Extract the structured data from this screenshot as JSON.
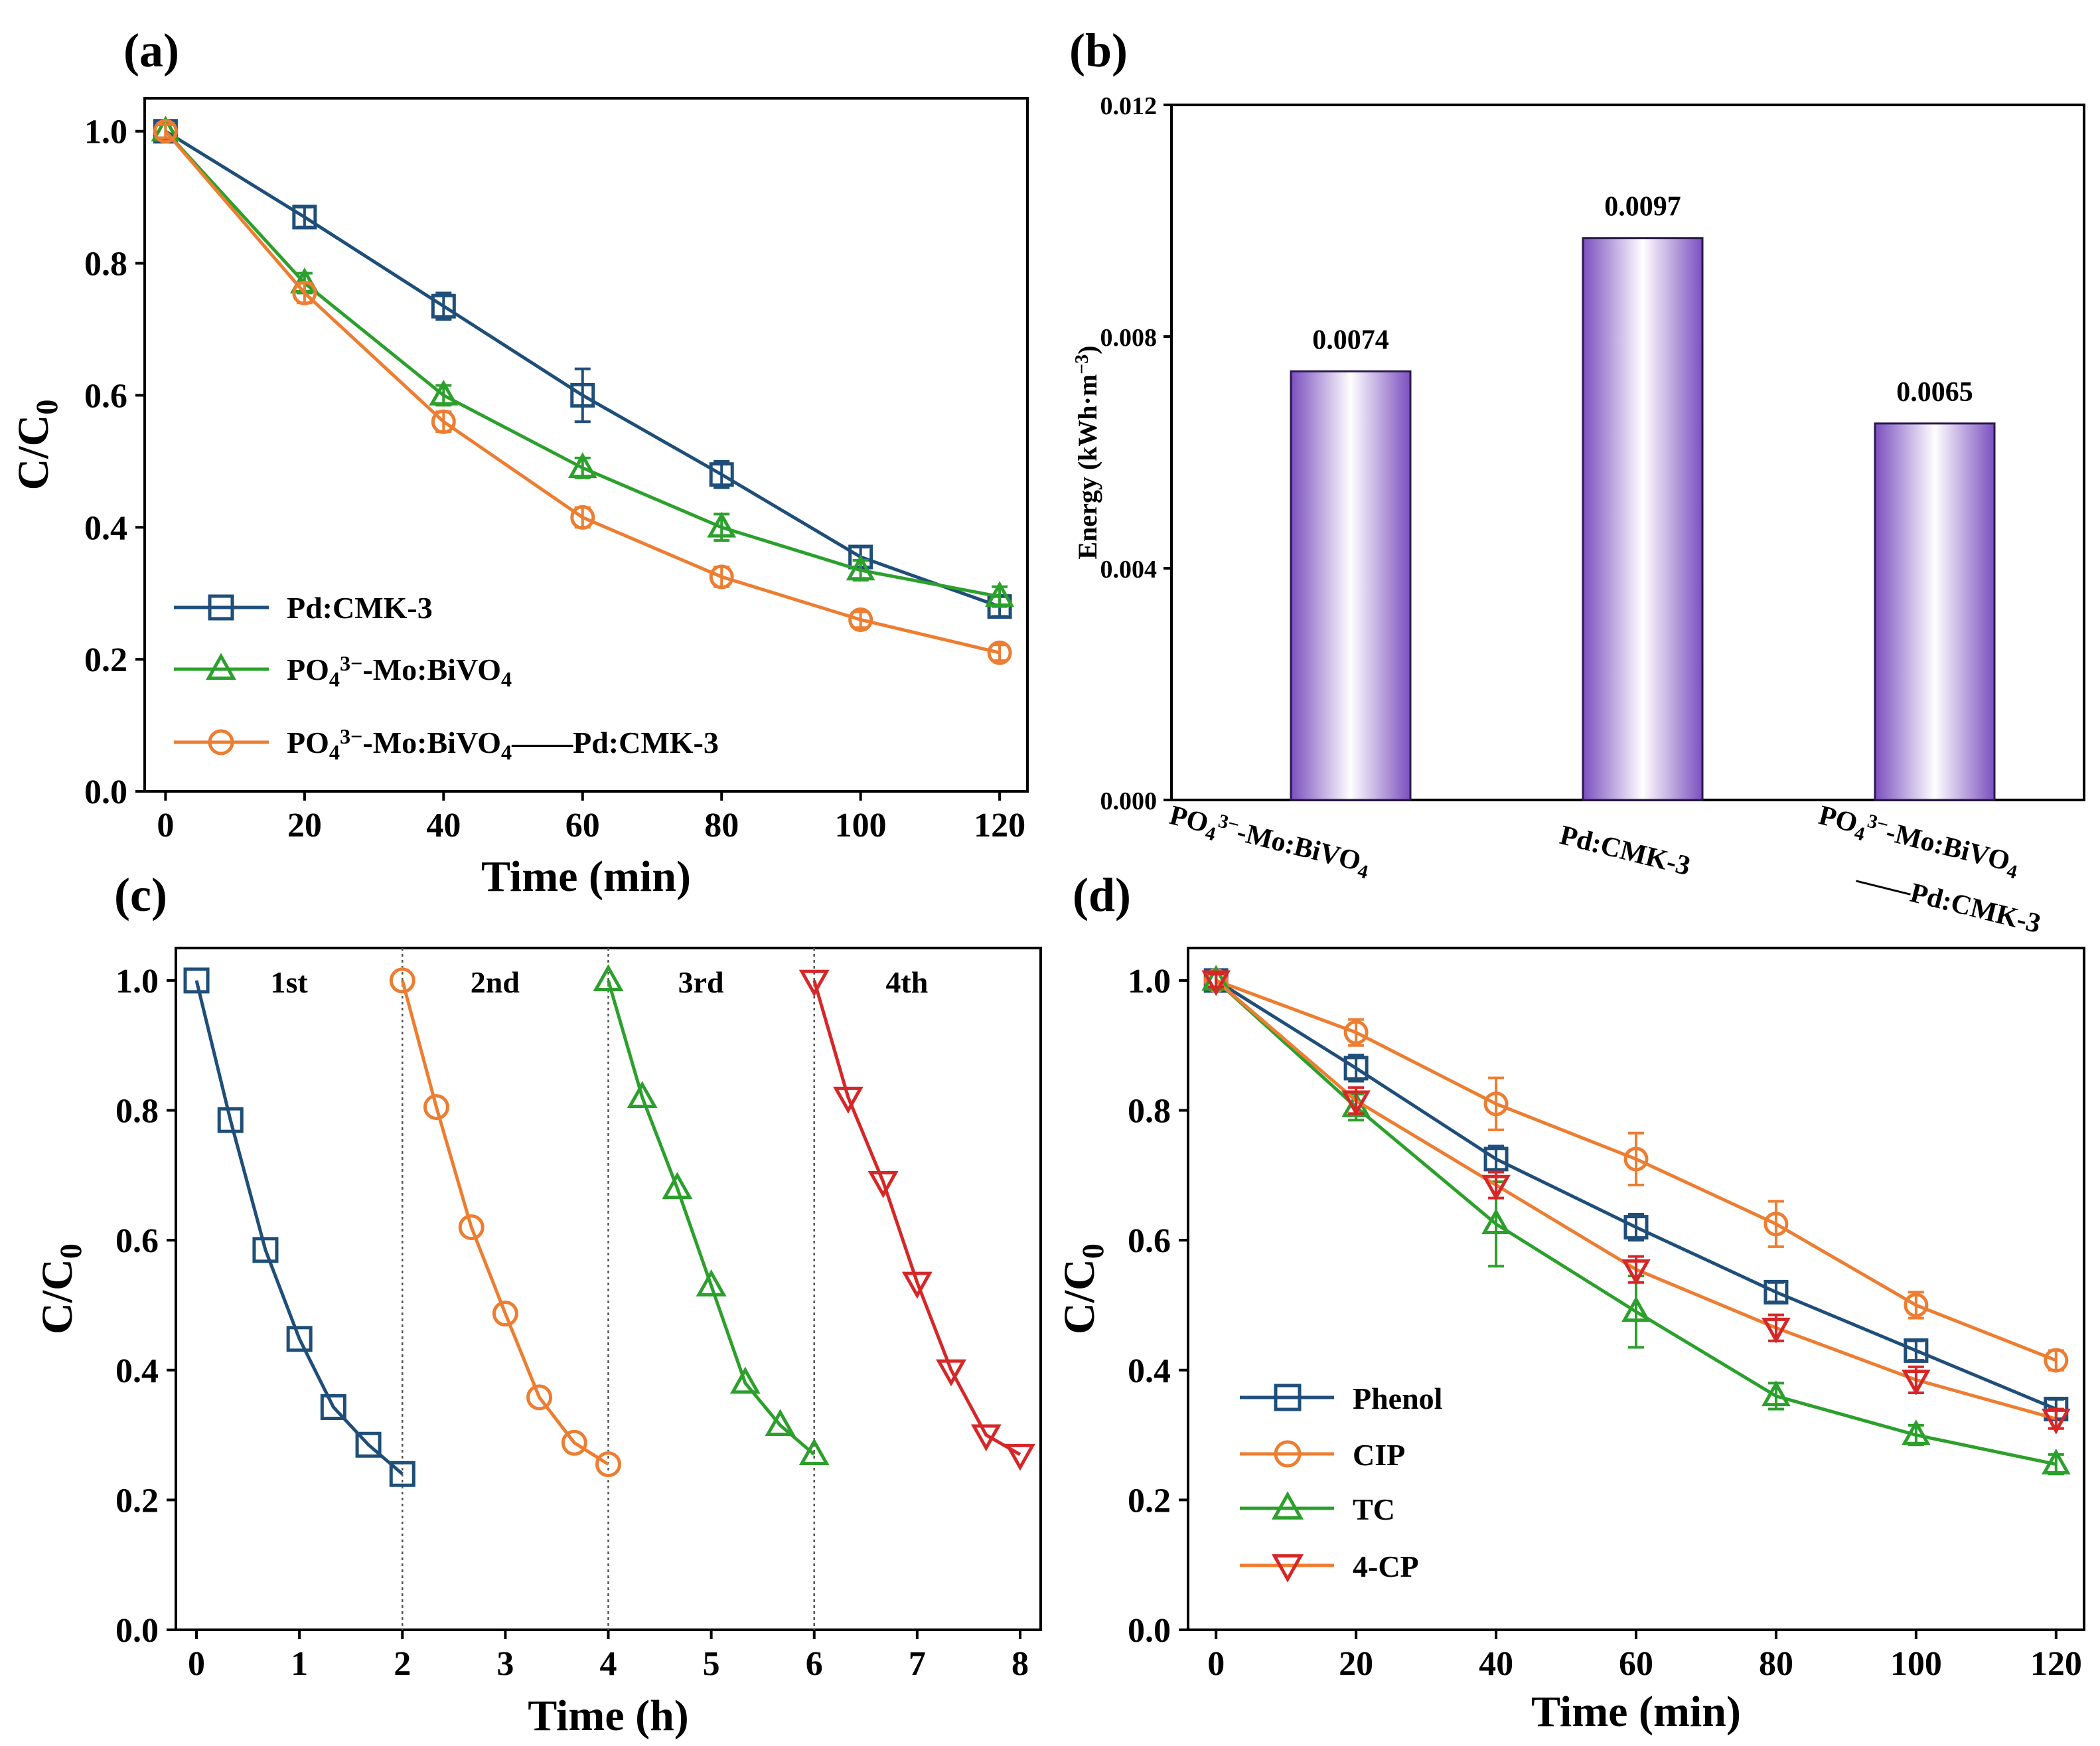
{
  "chart_data": [
    {
      "panel": "(a)",
      "type": "line",
      "xlabel": "Time (min)",
      "ylabel": "C/C0",
      "xlim": [
        -3,
        124
      ],
      "ylim": [
        0,
        1.05
      ],
      "xticks": [
        "0",
        "20",
        "40",
        "60",
        "80",
        "100",
        "120"
      ],
      "yticks": [
        "0.0",
        "0.2",
        "0.4",
        "0.6",
        "0.8",
        "1.0"
      ],
      "x": [
        0,
        20,
        40,
        60,
        80,
        100,
        120
      ],
      "series": [
        {
          "name": "Pd:CMK-3",
          "color": "#1f4e79",
          "marker": "square",
          "values": [
            1.0,
            0.87,
            0.735,
            0.6,
            0.48,
            0.355,
            0.28
          ],
          "errors": [
            0.01,
            0.015,
            0.02,
            0.04,
            0.02,
            0.015,
            0.015
          ]
        },
        {
          "name": "PO4 3−-Mo:BiVO4",
          "color": "#2ca02c",
          "marker": "triangle",
          "values": [
            1.0,
            0.77,
            0.6,
            0.49,
            0.4,
            0.335,
            0.295
          ],
          "errors": [
            0.01,
            0.015,
            0.015,
            0.015,
            0.02,
            0.015,
            0.015
          ]
        },
        {
          "name": "PO4 3−-Mo:BiVO4——Pd:CMK-3",
          "color": "#ed7d31",
          "marker": "circle",
          "values": [
            1.0,
            0.755,
            0.56,
            0.415,
            0.325,
            0.26,
            0.21
          ],
          "errors": [
            0.01,
            0.015,
            0.015,
            0.015,
            0.015,
            0.012,
            0.012
          ]
        }
      ],
      "legend": {
        "location": "lower-left",
        "entries": [
          {
            "main": "Pd:CMK-3"
          },
          {
            "main": "PO",
            "sub": "4",
            "sup": "3−",
            "tail": "-Mo:BiVO",
            "sub2": "4"
          },
          {
            "main": "PO",
            "sub": "4",
            "sup": "3−",
            "tail": "-Mo:BiVO",
            "sub2": "4",
            "tail2": "——Pd:CMK-3"
          }
        ]
      }
    },
    {
      "panel": "(b)",
      "type": "bar",
      "xlabel": "",
      "ylabel": "Energy (kWh·m−3)",
      "ylim": [
        0,
        0.012
      ],
      "yticks": [
        "0.000",
        "0.004",
        "0.008",
        "0.012"
      ],
      "categories": [
        "PO4 3−-Mo:BiVO4",
        "Pd:CMK-3",
        "PO4 3−-Mo:BiVO4——Pd:CMK-3"
      ],
      "values": [
        0.0074,
        0.0097,
        0.0065
      ],
      "value_labels": [
        "0.0074",
        "0.0097",
        "0.0065"
      ],
      "bar_color": "#7b4fbf"
    },
    {
      "panel": "(c)",
      "type": "line",
      "xlabel": "Time (h)",
      "ylabel": "C/C0",
      "xlim": [
        -0.2,
        8.2
      ],
      "ylim": [
        0,
        1.05
      ],
      "xticks": [
        "0",
        "1",
        "2",
        "3",
        "4",
        "5",
        "6",
        "7",
        "8"
      ],
      "yticks": [
        "0.0",
        "0.2",
        "0.4",
        "0.6",
        "0.8",
        "1.0"
      ],
      "cycle_dividers": [
        2,
        4,
        6
      ],
      "series": [
        {
          "name": "1st",
          "color": "#1f4e79",
          "marker": "square",
          "x": [
            0,
            0.33,
            0.67,
            1.0,
            1.33,
            1.67,
            2.0
          ],
          "values": [
            1.0,
            0.785,
            0.585,
            0.448,
            0.343,
            0.285,
            0.24
          ]
        },
        {
          "name": "2nd",
          "color": "#ed7d31",
          "marker": "circle",
          "x": [
            2.0,
            2.33,
            2.67,
            3.0,
            3.33,
            3.67,
            4.0
          ],
          "values": [
            1.0,
            0.805,
            0.62,
            0.487,
            0.358,
            0.288,
            0.255
          ]
        },
        {
          "name": "3rd",
          "color": "#2ca02c",
          "marker": "triangle",
          "x": [
            4.0,
            4.33,
            4.67,
            5.0,
            5.33,
            5.67,
            6.0
          ],
          "values": [
            1.0,
            0.82,
            0.68,
            0.53,
            0.38,
            0.315,
            0.27
          ]
        },
        {
          "name": "4th",
          "color": "#d62728",
          "marker": "triangle-down",
          "x": [
            6.0,
            6.33,
            6.67,
            7.0,
            7.33,
            7.67,
            8.0
          ],
          "values": [
            1.0,
            0.82,
            0.69,
            0.535,
            0.4,
            0.3,
            0.27
          ]
        }
      ]
    },
    {
      "panel": "(d)",
      "type": "line",
      "xlabel": "Time (min)",
      "ylabel": "C/C0",
      "xlim": [
        -4,
        124
      ],
      "ylim": [
        0,
        1.05
      ],
      "xticks": [
        "0",
        "20",
        "40",
        "60",
        "80",
        "100",
        "120"
      ],
      "yticks": [
        "0.0",
        "0.2",
        "0.4",
        "0.6",
        "0.8",
        "1.0"
      ],
      "x": [
        0,
        20,
        40,
        60,
        80,
        100,
        120
      ],
      "series": [
        {
          "name": "Phenol",
          "color": "#1f4e79",
          "marker": "square",
          "values": [
            1.0,
            0.865,
            0.725,
            0.62,
            0.52,
            0.43,
            0.34
          ],
          "errors": [
            0.01,
            0.02,
            0.02,
            0.02,
            0.015,
            0.015,
            0.015
          ]
        },
        {
          "name": "CIP",
          "color": "#ed7d31",
          "marker": "circle",
          "values": [
            1.0,
            0.92,
            0.81,
            0.725,
            0.625,
            0.5,
            0.415
          ],
          "errors": [
            0.01,
            0.02,
            0.04,
            0.04,
            0.035,
            0.02,
            0.015
          ]
        },
        {
          "name": "TC",
          "color": "#2ca02c",
          "marker": "triangle",
          "values": [
            1.0,
            0.805,
            0.625,
            0.49,
            0.36,
            0.3,
            0.255
          ],
          "errors": [
            0.01,
            0.02,
            0.065,
            0.055,
            0.02,
            0.015,
            0.015
          ]
        },
        {
          "name": "4-CP",
          "color": "#d62728",
          "marker": "triangle-down",
          "line_color": "#ed7d31",
          "values": [
            1.0,
            0.815,
            0.685,
            0.555,
            0.465,
            0.385,
            0.325
          ],
          "errors": [
            0.01,
            0.02,
            0.02,
            0.02,
            0.02,
            0.02,
            0.015
          ]
        }
      ],
      "legend": {
        "location": "lower-left"
      }
    }
  ]
}
